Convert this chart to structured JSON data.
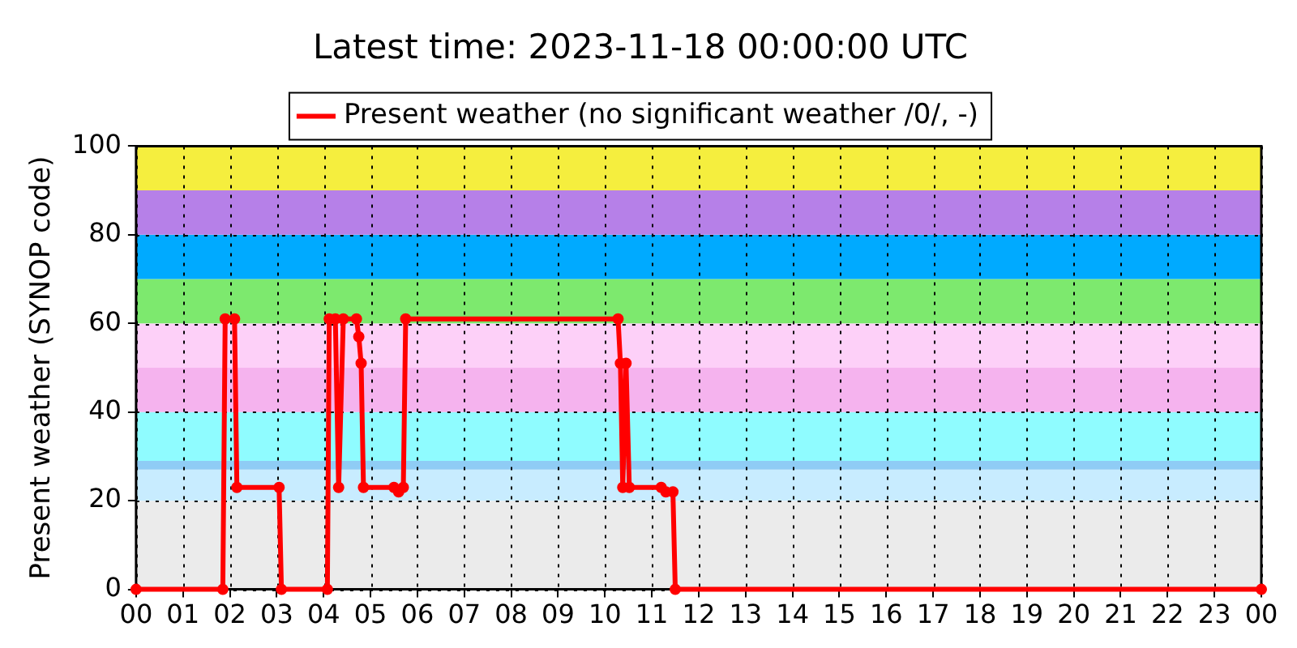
{
  "chart_data": {
    "type": "line",
    "title": "Latest time: 2023-11-18 00:00:00 UTC",
    "ylabel": "Present weather (SYNOP code)",
    "xlim": [
      0,
      24
    ],
    "xticks": [
      {
        "value": 0,
        "label": "00"
      },
      {
        "value": 1,
        "label": "01"
      },
      {
        "value": 2,
        "label": "02"
      },
      {
        "value": 3,
        "label": "03"
      },
      {
        "value": 4,
        "label": "04"
      },
      {
        "value": 5,
        "label": "05"
      },
      {
        "value": 6,
        "label": "06"
      },
      {
        "value": 7,
        "label": "07"
      },
      {
        "value": 8,
        "label": "08"
      },
      {
        "value": 9,
        "label": "09"
      },
      {
        "value": 10,
        "label": "10"
      },
      {
        "value": 11,
        "label": "11"
      },
      {
        "value": 12,
        "label": "12"
      },
      {
        "value": 13,
        "label": "13"
      },
      {
        "value": 14,
        "label": "14"
      },
      {
        "value": 15,
        "label": "15"
      },
      {
        "value": 16,
        "label": "16"
      },
      {
        "value": 17,
        "label": "17"
      },
      {
        "value": 18,
        "label": "18"
      },
      {
        "value": 19,
        "label": "19"
      },
      {
        "value": 20,
        "label": "20"
      },
      {
        "value": 21,
        "label": "21"
      },
      {
        "value": 22,
        "label": "22"
      },
      {
        "value": 23,
        "label": "23"
      },
      {
        "value": 24,
        "label": "00"
      }
    ],
    "ylim": [
      0,
      100
    ],
    "yticks": [
      0,
      20,
      40,
      60,
      80,
      100
    ],
    "grid": true,
    "legend": "top",
    "marker": "circle",
    "line_style": "solid",
    "bands": [
      {
        "axis": "y",
        "from": 0,
        "to": 20,
        "color": "#ebebeb"
      },
      {
        "axis": "y",
        "from": 20,
        "to": 27,
        "color": "#c8ecff"
      },
      {
        "axis": "y",
        "from": 27,
        "to": 29,
        "color": "#8fccf5"
      },
      {
        "axis": "y",
        "from": 29,
        "to": 40,
        "color": "#8ffcff"
      },
      {
        "axis": "y",
        "from": 40,
        "to": 50,
        "color": "#f5b3ee"
      },
      {
        "axis": "y",
        "from": 50,
        "to": 60,
        "color": "#fdd0f8"
      },
      {
        "axis": "y",
        "from": 60,
        "to": 70,
        "color": "#7de96e"
      },
      {
        "axis": "y",
        "from": 70,
        "to": 80,
        "color": "#00aaff"
      },
      {
        "axis": "y",
        "from": 80,
        "to": 90,
        "color": "#b680e8"
      },
      {
        "axis": "y",
        "from": 90,
        "to": 100,
        "color": "#f5ee3e"
      }
    ],
    "series": [
      {
        "name": "Present weather (no significant weather /0/, -)",
        "color": "#ff0000",
        "x": [
          0,
          1.85,
          1.9,
          2.1,
          2.15,
          3.05,
          3.1,
          4.08,
          4.12,
          4.25,
          4.32,
          4.42,
          4.7,
          4.75,
          4.8,
          4.85,
          5.5,
          5.6,
          5.7,
          5.75,
          10.28,
          10.33,
          10.38,
          10.45,
          10.52,
          11.2,
          11.3,
          11.45,
          11.5,
          24
        ],
        "values": [
          0,
          0,
          61,
          61,
          23,
          23,
          0,
          0,
          61,
          61,
          23,
          61,
          61,
          57,
          51,
          23,
          23,
          22,
          23,
          61,
          61,
          51,
          23,
          51,
          23,
          23,
          22,
          22,
          0,
          0
        ]
      }
    ]
  }
}
